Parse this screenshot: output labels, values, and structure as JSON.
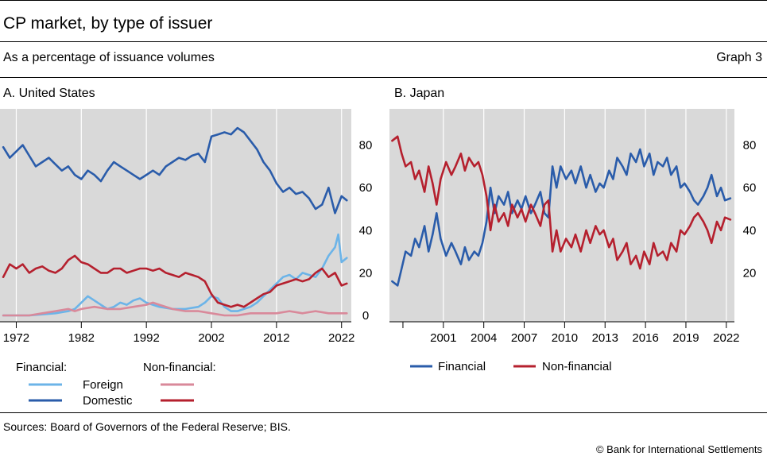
{
  "header": {
    "title": "CP market, by type of issuer",
    "subtitle": "As a percentage of issuance volumes",
    "graph_label": "Graph 3"
  },
  "footer": {
    "sources": "Sources: Board of Governors of the Federal Reserve; BIS.",
    "copyright": "© Bank for International Settlements"
  },
  "colors": {
    "domestic_financial": "#2a5caa",
    "foreign_financial": "#6cb4e8",
    "domestic_nonfinancial": "#b5202e",
    "foreign_nonfinancial": "#d9899a",
    "plot_background": "#d9d9d9",
    "gridline": "#ffffff"
  },
  "chart_data": [
    {
      "type": "line",
      "title": "A. United States",
      "xlabel": "",
      "ylabel": "",
      "x_ticks": [
        1972,
        1982,
        1992,
        2002,
        2012,
        2022
      ],
      "y_ticks": [
        0,
        20,
        40,
        60,
        80
      ],
      "xlim": [
        1969.5,
        2023.5
      ],
      "ylim": [
        -3,
        97
      ],
      "grid": "vertical",
      "y_axis_side": "right",
      "legend": {
        "placement": "bottom",
        "group_labels": [
          "Financial:",
          "Non-financial:"
        ],
        "row_labels": [
          "Foreign",
          "Domestic"
        ]
      },
      "series": [
        {
          "name": "Domestic",
          "group": "Financial",
          "color": "#2a5caa",
          "x": [
            1970,
            1971,
            1972,
            1973,
            1974,
            1975,
            1976,
            1977,
            1978,
            1979,
            1980,
            1981,
            1982,
            1983,
            1984,
            1985,
            1986,
            1987,
            1988,
            1989,
            1990,
            1991,
            1992,
            1993,
            1994,
            1995,
            1996,
            1997,
            1998,
            1999,
            2000,
            2001,
            2002,
            2003,
            2004,
            2005,
            2006,
            2007,
            2008,
            2009,
            2010,
            2011,
            2012,
            2013,
            2014,
            2015,
            2016,
            2017,
            2018,
            2019,
            2020,
            2021,
            2022,
            2022.8
          ],
          "values": [
            79,
            74,
            77,
            80,
            75,
            70,
            72,
            74,
            71,
            68,
            70,
            66,
            64,
            68,
            66,
            63,
            68,
            72,
            70,
            68,
            66,
            64,
            66,
            68,
            66,
            70,
            72,
            74,
            73,
            75,
            76,
            72,
            84,
            85,
            86,
            85,
            88,
            86,
            82,
            78,
            72,
            68,
            62,
            58,
            60,
            57,
            58,
            55,
            50,
            52,
            60,
            48,
            56,
            54
          ]
        },
        {
          "name": "Foreign",
          "group": "Financial",
          "color": "#6cb4e8",
          "x": [
            1970,
            1974,
            1978,
            1980,
            1981,
            1982,
            1983,
            1984,
            1985,
            1986,
            1987,
            1988,
            1989,
            1990,
            1991,
            1992,
            1993,
            1994,
            1996,
            1998,
            2000,
            2001,
            2002,
            2003,
            2004,
            2005,
            2006,
            2007,
            2008,
            2009,
            2010,
            2011,
            2012,
            2013,
            2014,
            2015,
            2016,
            2017,
            2018,
            2019,
            2020,
            2021,
            2021.5,
            2022,
            2022.8
          ],
          "values": [
            0,
            0,
            1,
            2,
            3,
            6,
            9,
            7,
            5,
            3,
            4,
            6,
            5,
            7,
            8,
            6,
            5,
            4,
            3,
            3,
            4,
            6,
            9,
            8,
            4,
            2,
            2,
            3,
            4,
            6,
            9,
            12,
            15,
            18,
            19,
            17,
            20,
            19,
            18,
            22,
            28,
            32,
            38,
            25,
            27
          ]
        },
        {
          "name": "Domestic",
          "group": "Non-financial",
          "color": "#b5202e",
          "x": [
            1970,
            1971,
            1972,
            1973,
            1974,
            1975,
            1976,
            1977,
            1978,
            1979,
            1980,
            1981,
            1982,
            1983,
            1984,
            1985,
            1986,
            1987,
            1988,
            1989,
            1990,
            1991,
            1992,
            1993,
            1994,
            1995,
            1996,
            1997,
            1998,
            1999,
            2000,
            2001,
            2002,
            2003,
            2004,
            2005,
            2006,
            2007,
            2008,
            2009,
            2010,
            2011,
            2012,
            2013,
            2014,
            2015,
            2016,
            2017,
            2018,
            2019,
            2020,
            2021,
            2022,
            2022.8
          ],
          "values": [
            18,
            24,
            22,
            24,
            20,
            22,
            23,
            21,
            20,
            22,
            26,
            28,
            25,
            24,
            22,
            20,
            20,
            22,
            22,
            20,
            21,
            22,
            22,
            21,
            22,
            20,
            19,
            18,
            20,
            19,
            18,
            16,
            10,
            6,
            5,
            4,
            5,
            4,
            6,
            8,
            10,
            11,
            14,
            15,
            16,
            17,
            16,
            17,
            20,
            22,
            18,
            20,
            14,
            15
          ]
        },
        {
          "name": "Foreign",
          "group": "Non-financial",
          "color": "#d9899a",
          "x": [
            1970,
            1972,
            1974,
            1976,
            1978,
            1980,
            1981,
            1982,
            1984,
            1986,
            1988,
            1990,
            1992,
            1993,
            1994,
            1996,
            1998,
            2000,
            2002,
            2004,
            2006,
            2008,
            2010,
            2012,
            2014,
            2016,
            2018,
            2020,
            2022,
            2022.8
          ],
          "values": [
            0,
            0,
            0,
            1,
            2,
            3,
            2,
            3,
            4,
            3,
            3,
            4,
            5,
            6,
            5,
            3,
            2,
            2,
            1,
            0,
            0,
            1,
            1,
            1,
            2,
            1,
            2,
            1,
            1,
            1
          ]
        }
      ]
    },
    {
      "type": "line",
      "title": "B. Japan",
      "xlabel": "",
      "ylabel": "",
      "x_ticks": [
        2001,
        2004,
        2007,
        2010,
        2013,
        2016,
        2019,
        2022
      ],
      "x_minor_ticks": [
        1998
      ],
      "y_ticks": [
        20,
        40,
        60,
        80
      ],
      "xlim": [
        1997,
        2022.6
      ],
      "ylim": [
        -3,
        97
      ],
      "grid": "vertical",
      "y_axis_side": "right",
      "legend": {
        "placement": "bottom"
      },
      "series": [
        {
          "name": "Financial",
          "color": "#2a5caa",
          "x": [
            1997.2,
            1997.6,
            1997.9,
            1998.2,
            1998.6,
            1998.9,
            1999.2,
            1999.6,
            1999.9,
            2000.2,
            2000.5,
            2000.8,
            2001.2,
            2001.6,
            2001.9,
            2002.3,
            2002.6,
            2002.9,
            2003.3,
            2003.6,
            2003.9,
            2004.2,
            2004.5,
            2004.8,
            2005.1,
            2005.5,
            2005.8,
            2006.1,
            2006.5,
            2006.8,
            2007.1,
            2007.5,
            2007.8,
            2008.2,
            2008.5,
            2008.8,
            2009.1,
            2009.4,
            2009.7,
            2010.1,
            2010.5,
            2010.8,
            2011.2,
            2011.6,
            2011.9,
            2012.3,
            2012.6,
            2012.9,
            2013.3,
            2013.6,
            2013.9,
            2014.3,
            2014.6,
            2014.9,
            2015.3,
            2015.6,
            2015.9,
            2016.3,
            2016.6,
            2016.9,
            2017.3,
            2017.6,
            2017.9,
            2018.3,
            2018.6,
            2018.9,
            2019.3,
            2019.6,
            2019.9,
            2020.3,
            2020.6,
            2020.9,
            2021.3,
            2021.6,
            2021.9,
            2022.3
          ],
          "values": [
            16,
            14,
            22,
            30,
            28,
            36,
            32,
            42,
            30,
            38,
            48,
            36,
            28,
            34,
            30,
            24,
            32,
            26,
            30,
            28,
            34,
            44,
            60,
            48,
            56,
            52,
            58,
            48,
            54,
            50,
            56,
            48,
            52,
            58,
            48,
            46,
            70,
            60,
            70,
            64,
            68,
            62,
            70,
            60,
            66,
            58,
            62,
            60,
            68,
            64,
            74,
            70,
            66,
            76,
            72,
            78,
            70,
            76,
            66,
            72,
            70,
            74,
            66,
            70,
            60,
            62,
            58,
            54,
            52,
            56,
            60,
            66,
            56,
            60,
            54,
            55
          ]
        },
        {
          "name": "Non-financial",
          "color": "#b5202e",
          "x": [
            1997.2,
            1997.6,
            1997.9,
            1998.2,
            1998.6,
            1998.9,
            1999.2,
            1999.6,
            1999.9,
            2000.2,
            2000.5,
            2000.8,
            2001.2,
            2001.6,
            2001.9,
            2002.3,
            2002.6,
            2002.9,
            2003.3,
            2003.6,
            2003.9,
            2004.2,
            2004.5,
            2004.8,
            2005.1,
            2005.5,
            2005.8,
            2006.1,
            2006.5,
            2006.8,
            2007.1,
            2007.5,
            2007.8,
            2008.2,
            2008.5,
            2008.8,
            2009.1,
            2009.4,
            2009.7,
            2010.1,
            2010.5,
            2010.8,
            2011.2,
            2011.6,
            2011.9,
            2012.3,
            2012.6,
            2012.9,
            2013.3,
            2013.6,
            2013.9,
            2014.3,
            2014.6,
            2014.9,
            2015.3,
            2015.6,
            2015.9,
            2016.3,
            2016.6,
            2016.9,
            2017.3,
            2017.6,
            2017.9,
            2018.3,
            2018.6,
            2018.9,
            2019.3,
            2019.6,
            2019.9,
            2020.3,
            2020.6,
            2020.9,
            2021.3,
            2021.6,
            2021.9,
            2022.3
          ],
          "values": [
            82,
            84,
            76,
            70,
            72,
            64,
            68,
            58,
            70,
            62,
            52,
            64,
            72,
            66,
            70,
            76,
            68,
            74,
            70,
            72,
            66,
            56,
            40,
            52,
            44,
            48,
            42,
            52,
            46,
            50,
            44,
            52,
            48,
            42,
            52,
            54,
            30,
            40,
            30,
            36,
            32,
            38,
            30,
            40,
            34,
            42,
            38,
            40,
            32,
            36,
            26,
            30,
            34,
            24,
            28,
            22,
            30,
            24,
            34,
            28,
            30,
            26,
            34,
            30,
            40,
            38,
            42,
            46,
            48,
            44,
            40,
            34,
            44,
            40,
            46,
            45
          ]
        }
      ]
    }
  ]
}
